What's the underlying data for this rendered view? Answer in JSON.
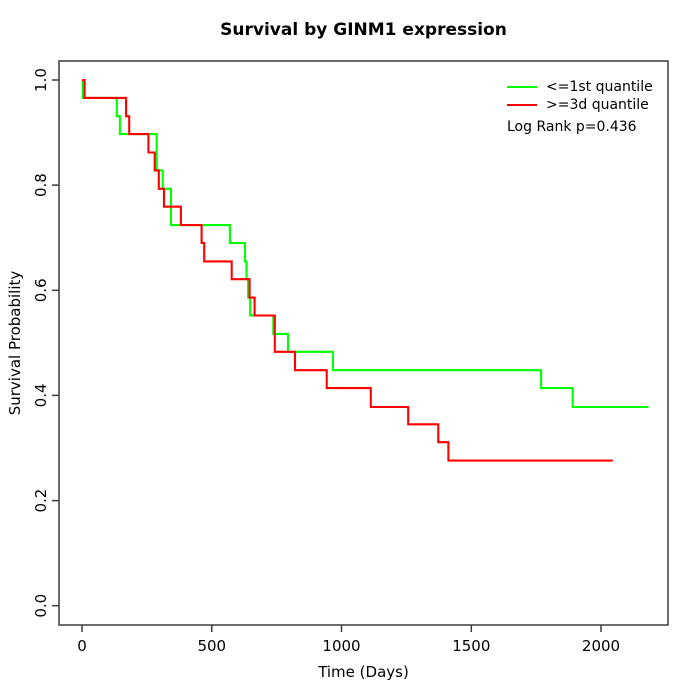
{
  "title": "Survival by GINM1 expression",
  "x_axis_label": "Time (Days)",
  "y_axis_label": "Survival Probability",
  "legend": {
    "items": [
      {
        "label": "<=1st quantile",
        "color": "#00ff00"
      },
      {
        "label": ">=3d quantile",
        "color": "#ff0000"
      }
    ],
    "note": "Log Rank p=0.436"
  },
  "chart_data": {
    "type": "line",
    "subtype": "kaplan-meier-step",
    "title": "Survival by GINM1 expression",
    "xlabel": "Time (Days)",
    "ylabel": "Survival Probability",
    "xlim": [
      -90,
      2260
    ],
    "ylim": [
      0.0,
      1.0
    ],
    "x_ticks": [
      0,
      500,
      1000,
      1500,
      2000
    ],
    "y_ticks": [
      0.0,
      0.2,
      0.4,
      0.6,
      0.8,
      1.0
    ],
    "grid": false,
    "legend_position": "top-right",
    "annotation": "Log Rank p=0.436",
    "series": [
      {
        "name": "<=1st quantile",
        "color": "#00ff00",
        "points": [
          [
            0,
            1.0
          ],
          [
            3,
            0.966
          ],
          [
            134,
            0.931
          ],
          [
            146,
            0.897
          ],
          [
            288,
            0.828
          ],
          [
            311,
            0.793
          ],
          [
            343,
            0.724
          ],
          [
            570,
            0.69
          ],
          [
            628,
            0.655
          ],
          [
            634,
            0.621
          ],
          [
            640,
            0.586
          ],
          [
            648,
            0.552
          ],
          [
            737,
            0.517
          ],
          [
            794,
            0.483
          ],
          [
            967,
            0.448
          ],
          [
            1769,
            0.414
          ],
          [
            1891,
            0.378
          ],
          [
            2183,
            0.378
          ]
        ]
      },
      {
        "name": ">=3d quantile",
        "color": "#ff0000",
        "points": [
          [
            0,
            1.0
          ],
          [
            10,
            0.966
          ],
          [
            170,
            0.931
          ],
          [
            182,
            0.897
          ],
          [
            256,
            0.862
          ],
          [
            280,
            0.828
          ],
          [
            296,
            0.793
          ],
          [
            316,
            0.759
          ],
          [
            381,
            0.724
          ],
          [
            461,
            0.69
          ],
          [
            471,
            0.655
          ],
          [
            577,
            0.621
          ],
          [
            646,
            0.586
          ],
          [
            665,
            0.552
          ],
          [
            743,
            0.483
          ],
          [
            821,
            0.448
          ],
          [
            943,
            0.414
          ],
          [
            1113,
            0.378
          ],
          [
            1257,
            0.345
          ],
          [
            1373,
            0.311
          ],
          [
            1412,
            0.276
          ],
          [
            2045,
            0.276
          ]
        ]
      }
    ]
  }
}
